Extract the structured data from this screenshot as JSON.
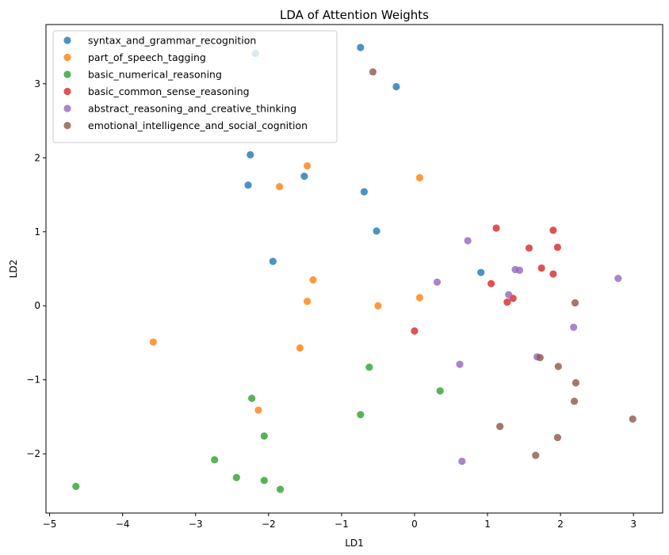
{
  "chart_data": {
    "type": "scatter",
    "title": "LDA of Attention Weights",
    "xlabel": "LD1",
    "ylabel": "LD2",
    "xlim": [
      -5.05,
      3.4
    ],
    "ylim": [
      -2.8,
      3.8
    ],
    "xticks": [
      -5,
      -4,
      -3,
      -2,
      -1,
      0,
      1,
      2,
      3
    ],
    "xtick_labels": [
      "−5",
      "−4",
      "−3",
      "−2",
      "−1",
      "0",
      "1",
      "2",
      "3"
    ],
    "yticks": [
      -2,
      -1,
      0,
      1,
      2,
      3
    ],
    "ytick_labels": [
      "−2",
      "−1",
      "0",
      "1",
      "2",
      "3"
    ],
    "grid": false,
    "legend_position": "top-left",
    "series": [
      {
        "name": "syntax_and_grammar_recognition",
        "color": "#1f77b4",
        "points": [
          [
            -2.18,
            3.41
          ],
          [
            -0.74,
            3.49
          ],
          [
            -0.25,
            2.96
          ],
          [
            -2.25,
            2.04
          ],
          [
            -2.28,
            1.63
          ],
          [
            -1.51,
            1.75
          ],
          [
            -0.69,
            1.54
          ],
          [
            -0.52,
            1.01
          ],
          [
            -1.94,
            0.6
          ],
          [
            0.91,
            0.45
          ]
        ]
      },
      {
        "name": "part_of_speech_tagging",
        "color": "#ff7f0e",
        "points": [
          [
            -1.47,
            1.89
          ],
          [
            -1.85,
            1.61
          ],
          [
            0.07,
            1.73
          ],
          [
            -1.39,
            0.35
          ],
          [
            -1.47,
            0.06
          ],
          [
            -0.5,
            0.0
          ],
          [
            0.07,
            0.11
          ],
          [
            -3.58,
            -0.49
          ],
          [
            -1.57,
            -0.57
          ],
          [
            -2.14,
            -1.41
          ]
        ]
      },
      {
        "name": "basic_numerical_reasoning",
        "color": "#2ca02c",
        "points": [
          [
            -0.62,
            -0.83
          ],
          [
            0.35,
            -1.15
          ],
          [
            -2.23,
            -1.25
          ],
          [
            -0.74,
            -1.47
          ],
          [
            -2.06,
            -1.76
          ],
          [
            -2.74,
            -2.08
          ],
          [
            -2.44,
            -2.32
          ],
          [
            -2.06,
            -2.36
          ],
          [
            -1.84,
            -2.48
          ],
          [
            -4.64,
            -2.44
          ]
        ]
      },
      {
        "name": "basic_common_sense_reasoning",
        "color": "#d62728",
        "points": [
          [
            1.12,
            1.05
          ],
          [
            1.9,
            1.02
          ],
          [
            1.57,
            0.78
          ],
          [
            1.96,
            0.79
          ],
          [
            1.74,
            0.51
          ],
          [
            1.9,
            0.43
          ],
          [
            1.05,
            0.3
          ],
          [
            1.35,
            0.1
          ],
          [
            1.27,
            0.05
          ],
          [
            0.0,
            -0.34
          ]
        ]
      },
      {
        "name": "abstract_reasoning_and_creative_thinking",
        "color": "#9467bd",
        "points": [
          [
            0.73,
            0.88
          ],
          [
            1.38,
            0.49
          ],
          [
            1.44,
            0.48
          ],
          [
            0.31,
            0.32
          ],
          [
            1.29,
            0.15
          ],
          [
            2.79,
            0.37
          ],
          [
            2.18,
            -0.29
          ],
          [
            1.68,
            -0.69
          ],
          [
            0.62,
            -0.79
          ],
          [
            0.65,
            -2.1
          ]
        ]
      },
      {
        "name": "emotional_intelligence_and_social_cognition",
        "color": "#8c564b",
        "points": [
          [
            -0.57,
            3.16
          ],
          [
            2.2,
            0.04
          ],
          [
            1.72,
            -0.7
          ],
          [
            1.97,
            -0.82
          ],
          [
            2.21,
            -1.04
          ],
          [
            2.19,
            -1.29
          ],
          [
            2.99,
            -1.53
          ],
          [
            1.17,
            -1.63
          ],
          [
            1.96,
            -1.78
          ],
          [
            1.66,
            -2.02
          ]
        ]
      }
    ]
  }
}
